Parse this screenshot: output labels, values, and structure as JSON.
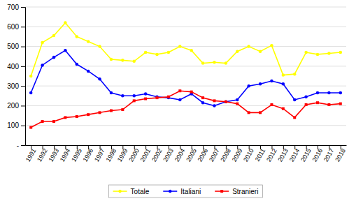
{
  "chart_data": {
    "type": "line",
    "x": [
      1991,
      1992,
      1993,
      1994,
      1995,
      1996,
      1997,
      1998,
      1999,
      2000,
      2001,
      2002,
      2003,
      2004,
      2005,
      2006,
      2007,
      2008,
      2009,
      2010,
      2011,
      2012,
      2013,
      2014,
      2015,
      2016,
      2017,
      2018
    ],
    "series": [
      {
        "name": "Totale",
        "color": "#FFFF00",
        "marker": "circle",
        "values": [
          350,
          520,
          555,
          620,
          550,
          525,
          500,
          435,
          430,
          425,
          470,
          460,
          470,
          500,
          480,
          415,
          420,
          415,
          475,
          500,
          475,
          505,
          355,
          360,
          470,
          460,
          465,
          470
        ]
      },
      {
        "name": "Italiani",
        "color": "#0000FF",
        "marker": "circle",
        "values": [
          265,
          405,
          445,
          480,
          410,
          375,
          335,
          265,
          250,
          250,
          260,
          245,
          240,
          230,
          260,
          215,
          200,
          220,
          230,
          300,
          310,
          325,
          310,
          230,
          245,
          265,
          265,
          265
        ]
      },
      {
        "name": "Stranieri",
        "color": "#FF0000",
        "marker": "square",
        "values": [
          90,
          120,
          120,
          140,
          145,
          155,
          165,
          175,
          180,
          225,
          235,
          240,
          245,
          275,
          270,
          240,
          225,
          220,
          210,
          165,
          165,
          205,
          185,
          140,
          205,
          215,
          205,
          210
        ]
      }
    ],
    "xlim": [
      1990.5,
      2018.5
    ],
    "xticks": [
      1991,
      1992,
      1993,
      1994,
      1995,
      1996,
      1997,
      1998,
      1999,
      2000,
      2001,
      2002,
      2003,
      2004,
      2005,
      2006,
      2007,
      2008,
      2009,
      2010,
      2011,
      2012,
      2013,
      2014,
      2015,
      2016,
      2017,
      2018
    ],
    "ylim": [
      0,
      700
    ],
    "yticks": [
      {
        "value": 0,
        "label": "-"
      },
      100,
      200,
      300,
      400,
      500,
      600,
      700
    ],
    "grid": true,
    "legend": "bottom"
  }
}
